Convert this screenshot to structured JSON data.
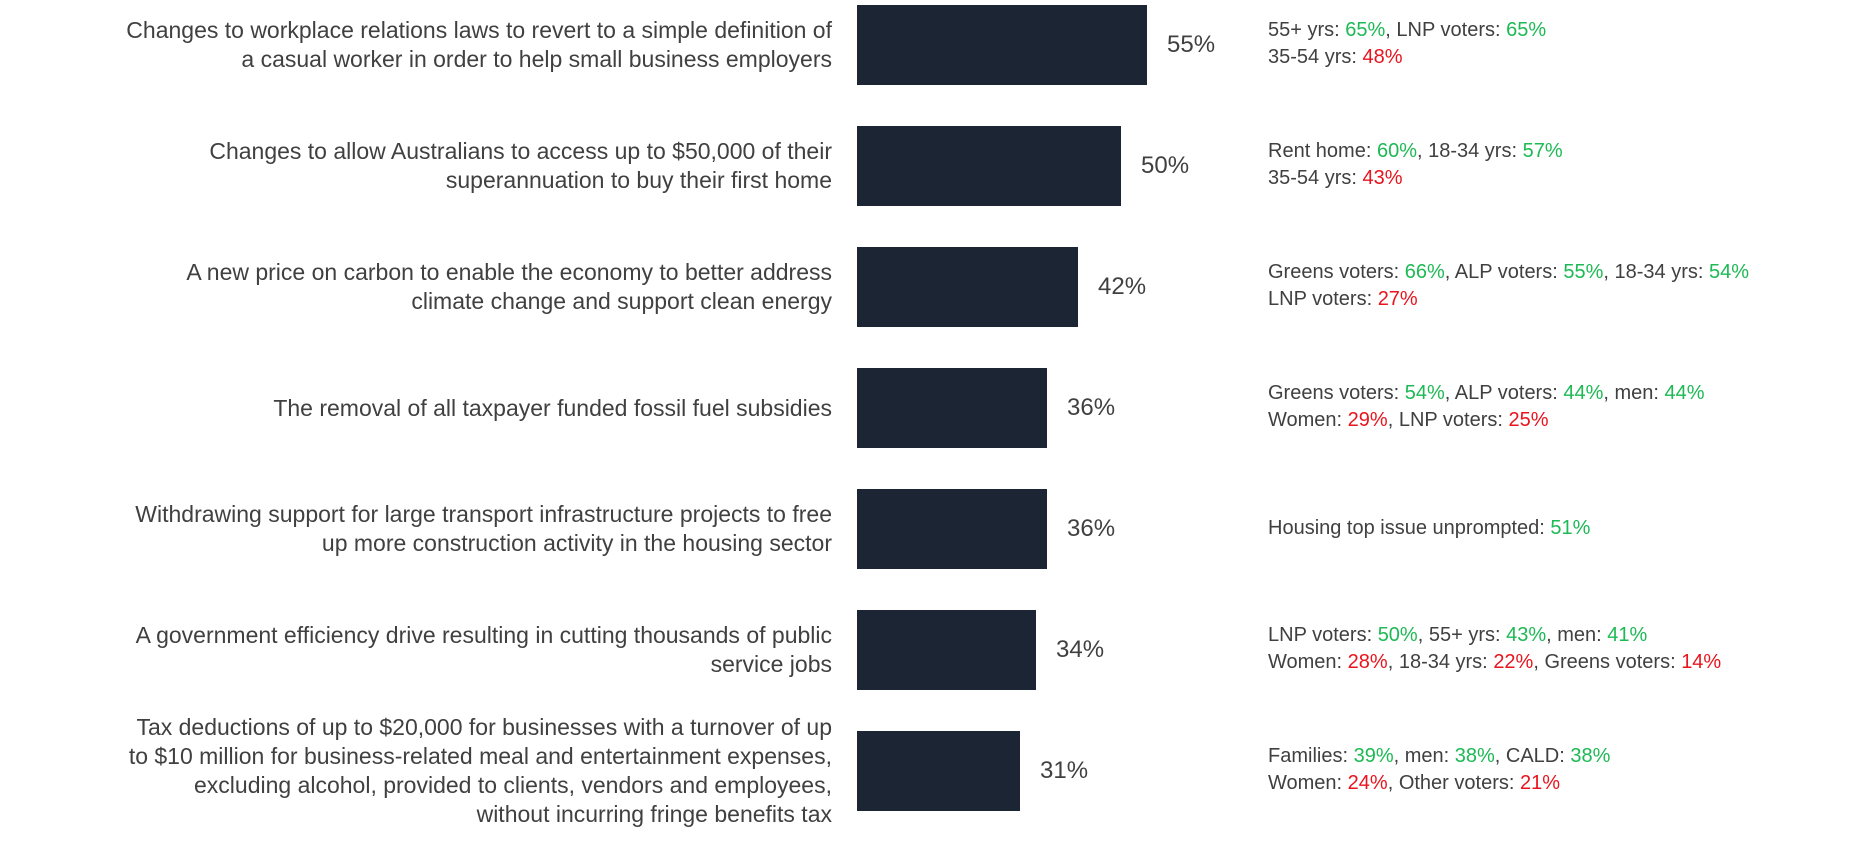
{
  "colors": {
    "bar": "#1c2534",
    "text": "#404040",
    "higher": "#1db954",
    "lower": "#e8141e"
  },
  "chart_data": {
    "type": "bar",
    "orientation": "horizontal",
    "xlim": [
      0,
      100
    ],
    "categories": [
      "Changes to workplace relations laws to revert to a simple definition of a casual worker in order to help small business employers",
      "Changes to allow Australians to access up to $50,000 of their superannuation to buy their first home",
      "A new price on carbon to enable the economy to better address climate change and support clean energy",
      "The removal of all taxpayer funded fossil fuel subsidies",
      "Withdrawing support for large transport infrastructure projects to free up more construction activity in the housing sector",
      "A government efficiency drive resulting in cutting thousands of public service jobs",
      "Tax deductions of up to $20,000 for businesses with a turnover of up to $10 million for business-related meal and entertainment expenses, excluding alcohol, provided to clients, vendors and employees, without incurring fringe benefits tax"
    ],
    "values": [
      55,
      50,
      42,
      36,
      36,
      34,
      31
    ],
    "value_labels": [
      "55%",
      "50%",
      "42%",
      "36%",
      "36%",
      "34%",
      "31%"
    ]
  },
  "rows": [
    {
      "label_lines": [
        "Changes to workplace relations laws to revert to a simple definition of",
        "a casual worker in order to help small business employers"
      ],
      "value": 55,
      "value_label": "55%",
      "notes": [
        [
          {
            "text": "55+ yrs: ",
            "kind": "plain"
          },
          {
            "text": "65%",
            "kind": "up"
          },
          {
            "text": ", LNP voters: ",
            "kind": "plain"
          },
          {
            "text": "65%",
            "kind": "up"
          }
        ],
        [
          {
            "text": "35-54 yrs: ",
            "kind": "plain"
          },
          {
            "text": "48%",
            "kind": "down"
          }
        ]
      ]
    },
    {
      "label_lines": [
        "Changes to allow Australians to access up to $50,000 of their",
        "superannuation to buy their first home"
      ],
      "value": 50,
      "value_label": "50%",
      "notes": [
        [
          {
            "text": "Rent home: ",
            "kind": "plain"
          },
          {
            "text": "60%",
            "kind": "up"
          },
          {
            "text": ", 18-34 yrs: ",
            "kind": "plain"
          },
          {
            "text": "57%",
            "kind": "up"
          }
        ],
        [
          {
            "text": "35-54 yrs: ",
            "kind": "plain"
          },
          {
            "text": "43%",
            "kind": "down"
          }
        ]
      ]
    },
    {
      "label_lines": [
        "A new price on carbon to enable the economy to better address",
        "climate change and support clean energy"
      ],
      "value": 42,
      "value_label": "42%",
      "notes": [
        [
          {
            "text": "Greens voters: ",
            "kind": "plain"
          },
          {
            "text": "66%",
            "kind": "up"
          },
          {
            "text": ", ALP voters: ",
            "kind": "plain"
          },
          {
            "text": "55%",
            "kind": "up"
          },
          {
            "text": ", 18-34 yrs: ",
            "kind": "plain"
          },
          {
            "text": "54%",
            "kind": "up"
          }
        ],
        [
          {
            "text": "LNP voters: ",
            "kind": "plain"
          },
          {
            "text": "27%",
            "kind": "down"
          }
        ]
      ]
    },
    {
      "label_lines": [
        "The removal of all taxpayer funded fossil fuel subsidies"
      ],
      "value": 36,
      "value_label": "36%",
      "notes": [
        [
          {
            "text": "Greens voters: ",
            "kind": "plain"
          },
          {
            "text": "54%",
            "kind": "up"
          },
          {
            "text": ", ALP voters: ",
            "kind": "plain"
          },
          {
            "text": "44%",
            "kind": "up"
          },
          {
            "text": ", men: ",
            "kind": "plain"
          },
          {
            "text": "44%",
            "kind": "up"
          }
        ],
        [
          {
            "text": "Women: ",
            "kind": "plain"
          },
          {
            "text": "29%",
            "kind": "down"
          },
          {
            "text": ", LNP voters: ",
            "kind": "plain"
          },
          {
            "text": "25%",
            "kind": "down"
          }
        ]
      ]
    },
    {
      "label_lines": [
        "Withdrawing support for large transport infrastructure projects to free",
        "up more construction activity in the housing sector"
      ],
      "value": 36,
      "value_label": "36%",
      "notes": [
        [
          {
            "text": "Housing top issue unprompted: ",
            "kind": "plain"
          },
          {
            "text": "51%",
            "kind": "up"
          }
        ]
      ]
    },
    {
      "label_lines": [
        "A government efficiency drive resulting in cutting thousands of public",
        "service jobs"
      ],
      "value": 34,
      "value_label": "34%",
      "notes": [
        [
          {
            "text": "LNP voters: ",
            "kind": "plain"
          },
          {
            "text": "50%",
            "kind": "up"
          },
          {
            "text": ", 55+ yrs: ",
            "kind": "plain"
          },
          {
            "text": "43%",
            "kind": "up"
          },
          {
            "text": ", men: ",
            "kind": "plain"
          },
          {
            "text": "41%",
            "kind": "up"
          }
        ],
        [
          {
            "text": "Women: ",
            "kind": "plain"
          },
          {
            "text": "28%",
            "kind": "down"
          },
          {
            "text": ", 18-34 yrs: ",
            "kind": "plain"
          },
          {
            "text": "22%",
            "kind": "down"
          },
          {
            "text": ", Greens voters: ",
            "kind": "plain"
          },
          {
            "text": "14%",
            "kind": "down"
          }
        ]
      ]
    },
    {
      "label_lines": [
        "Tax deductions of up to $20,000 for businesses with a turnover of up",
        "to $10 million for business-related meal and entertainment expenses,",
        "excluding alcohol, provided to clients, vendors and employees,",
        "without incurring fringe benefits tax"
      ],
      "value": 31,
      "value_label": "31%",
      "notes": [
        [
          {
            "text": "Families: ",
            "kind": "plain"
          },
          {
            "text": "39%",
            "kind": "up"
          },
          {
            "text": ", men: ",
            "kind": "plain"
          },
          {
            "text": "38%",
            "kind": "up"
          },
          {
            "text": ", CALD: ",
            "kind": "plain"
          },
          {
            "text": "38%",
            "kind": "up"
          }
        ],
        [
          {
            "text": "Women: ",
            "kind": "plain"
          },
          {
            "text": "24%",
            "kind": "down"
          },
          {
            "text": ", Other voters: ",
            "kind": "plain"
          },
          {
            "text": "21%",
            "kind": "down"
          }
        ]
      ]
    }
  ]
}
